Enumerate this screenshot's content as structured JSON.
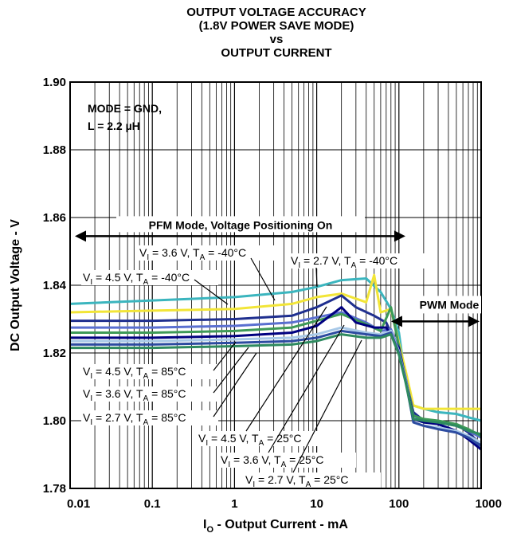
{
  "chart_data": {
    "type": "line",
    "title_lines": [
      "OUTPUT VOLTAGE ACCURACY",
      "(1.8V POWER SAVE MODE)",
      "vs",
      "OUTPUT CURRENT"
    ],
    "xlabel": {
      "main": "I",
      "sub": "O",
      "rest": " - Output Current - mA"
    },
    "ylabel": "DC Output Voltage - V",
    "xscale": "log",
    "xlim": [
      0.01,
      1000
    ],
    "ylim": [
      1.78,
      1.9
    ],
    "x_ticks": [
      0.01,
      0.1,
      1,
      10,
      100,
      1000
    ],
    "x_tick_labels": [
      "0.01",
      "0.1",
      "1",
      "10",
      "100",
      "1000"
    ],
    "y_ticks": [
      1.78,
      1.8,
      1.82,
      1.84,
      1.86,
      1.88,
      1.9
    ],
    "y_tick_labels": [
      "1.78",
      "1.80",
      "1.82",
      "1.84",
      "1.86",
      "1.88",
      "1.90"
    ],
    "grid": true,
    "conditions": [
      "MODE = GND,",
      "L = 2.2 µH"
    ],
    "regions": [
      {
        "label": "PFM Mode, Voltage Positioning On",
        "x_from": 0.01,
        "x_to": 120,
        "y": 1.8545
      },
      {
        "label": "PWM Mode",
        "x_from": 120,
        "x_to": 1000,
        "y": 1.8345
      }
    ],
    "series": [
      {
        "name": "VI = 4.5 V, TA = -40°C",
        "color": "#3BB5BE",
        "x": [
          0.01,
          0.1,
          1,
          5,
          10,
          20,
          40,
          60,
          80,
          100,
          120,
          150,
          200,
          300,
          500,
          700,
          1000
        ],
        "y": [
          1.8345,
          1.8355,
          1.8365,
          1.838,
          1.8395,
          1.8415,
          1.842,
          1.838,
          1.833,
          1.826,
          1.812,
          1.8045,
          1.8035,
          1.8025,
          1.802,
          1.801,
          1.8
        ]
      },
      {
        "name": "VI = 3.6 V, TA = -40°C",
        "color": "#F2E537",
        "x": [
          0.01,
          0.1,
          1,
          5,
          10,
          20,
          40,
          50,
          60,
          80,
          100,
          120,
          150,
          200,
          300,
          500,
          700,
          1000
        ],
        "y": [
          1.832,
          1.8325,
          1.833,
          1.8345,
          1.8365,
          1.8375,
          1.835,
          1.843,
          1.832,
          1.833,
          1.823,
          1.815,
          1.8045,
          1.8035,
          1.8035,
          1.8035,
          1.8035,
          1.8035
        ]
      },
      {
        "name": "VI = 2.7 V, TA = -40°C",
        "color": "#1F2F8F",
        "x": [
          0.01,
          0.1,
          1,
          5,
          10,
          20,
          30,
          50,
          70,
          100,
          120,
          150,
          200,
          300,
          500,
          700,
          1000
        ],
        "y": [
          1.8295,
          1.8295,
          1.83,
          1.831,
          1.8335,
          1.837,
          1.8335,
          1.831,
          1.829,
          1.821,
          1.8125,
          1.8025,
          1.8,
          1.7995,
          1.799,
          1.7965,
          1.793
        ]
      },
      {
        "name": "VI = 4.5 V, TA = 25°C",
        "color": "#5A6FD0",
        "x": [
          0.01,
          0.1,
          1,
          5,
          10,
          20,
          40,
          60,
          80,
          100,
          120,
          150,
          200,
          300,
          500,
          700,
          1000
        ],
        "y": [
          1.8275,
          1.8275,
          1.828,
          1.829,
          1.8305,
          1.832,
          1.829,
          1.8265,
          1.827,
          1.821,
          1.813,
          1.8015,
          1.8,
          1.7995,
          1.7985,
          1.797,
          1.795
        ]
      },
      {
        "name": "VI = 3.6 V, TA = 25°C",
        "color": "#3E9A57",
        "x": [
          0.01,
          0.1,
          1,
          5,
          10,
          20,
          40,
          60,
          80,
          100,
          120,
          150,
          200,
          300,
          500,
          700,
          1000
        ],
        "y": [
          1.826,
          1.826,
          1.8265,
          1.8275,
          1.8295,
          1.8315,
          1.8285,
          1.8265,
          1.8335,
          1.822,
          1.8125,
          1.8015,
          1.8005,
          1.8,
          1.799,
          1.7975,
          1.7955
        ]
      },
      {
        "name": "VI = 2.7 V, TA = 25°C",
        "color": "#000080",
        "x": [
          0.01,
          0.1,
          1,
          5,
          10,
          20,
          30,
          50,
          70,
          100,
          120,
          150,
          200,
          300,
          500,
          700,
          1000
        ],
        "y": [
          1.8245,
          1.8245,
          1.825,
          1.826,
          1.828,
          1.8335,
          1.829,
          1.8275,
          1.8275,
          1.8215,
          1.8125,
          1.8005,
          1.7995,
          1.799,
          1.797,
          1.7945,
          1.7915
        ]
      },
      {
        "name": "VI = 4.5 V, TA = 85°C",
        "color": "#A8C9E8",
        "x": [
          0.01,
          0.1,
          1,
          5,
          10,
          20,
          40,
          60,
          80,
          100,
          120,
          150,
          200,
          300,
          500,
          700,
          1000
        ],
        "y": [
          1.8235,
          1.8235,
          1.824,
          1.8245,
          1.8255,
          1.8275,
          1.826,
          1.8255,
          1.8265,
          1.8205,
          1.8125,
          1.7995,
          1.7985,
          1.798,
          1.797,
          1.7955,
          1.7935
        ]
      },
      {
        "name": "VI = 3.6 V, TA = 85°C",
        "color": "#2C4BA0",
        "x": [
          0.01,
          0.1,
          1,
          5,
          10,
          20,
          40,
          60,
          80,
          100,
          120,
          150,
          200,
          300,
          500,
          700,
          1000
        ],
        "y": [
          1.8225,
          1.8225,
          1.823,
          1.8235,
          1.8245,
          1.8265,
          1.8255,
          1.825,
          1.826,
          1.82,
          1.812,
          1.7995,
          1.7985,
          1.7975,
          1.7965,
          1.795,
          1.7925
        ]
      },
      {
        "name": "VI = 2.7 V, TA = 85°C",
        "color": "#2E8A5F",
        "x": [
          0.01,
          0.1,
          1,
          5,
          10,
          20,
          40,
          60,
          80,
          100,
          120,
          150,
          200,
          300,
          500,
          700,
          1000
        ],
        "y": [
          1.8215,
          1.8215,
          1.822,
          1.8225,
          1.8235,
          1.8255,
          1.8245,
          1.8245,
          1.8255,
          1.8195,
          1.8115,
          1.8005,
          1.8,
          1.7995,
          1.7985,
          1.797,
          1.796
        ]
      }
    ],
    "series_labels": [
      {
        "main": "V",
        "sub1": "I",
        "mid": " = 3.6 V, T",
        "sub2": "A",
        "end": " = -40°C"
      },
      {
        "main": "V",
        "sub1": "I",
        "mid": " = 2.7 V, T",
        "sub2": "A",
        "end": " = -40°C"
      },
      {
        "main": "V",
        "sub1": "I",
        "mid": " = 4.5 V, T",
        "sub2": "A",
        "end": " = -40°C"
      },
      {
        "main": "V",
        "sub1": "I",
        "mid": " = 4.5 V, T",
        "sub2": "A",
        "end": " = 85°C"
      },
      {
        "main": "V",
        "sub1": "I",
        "mid": " = 3.6 V, T",
        "sub2": "A",
        "end": " = 85°C"
      },
      {
        "main": "V",
        "sub1": "I",
        "mid": " = 2.7 V, T",
        "sub2": "A",
        "end": " = 85°C"
      },
      {
        "main": "V",
        "sub1": "I",
        "mid": " = 4.5 V, T",
        "sub2": "A",
        "end": " = 25°C"
      },
      {
        "main": "V",
        "sub1": "I",
        "mid": " = 3.6 V, T",
        "sub2": "A",
        "end": " = 25°C"
      },
      {
        "main": "V",
        "sub1": "I",
        "mid": " = 2.7 V, T",
        "sub2": "A",
        "end": " = 25°C"
      }
    ]
  }
}
